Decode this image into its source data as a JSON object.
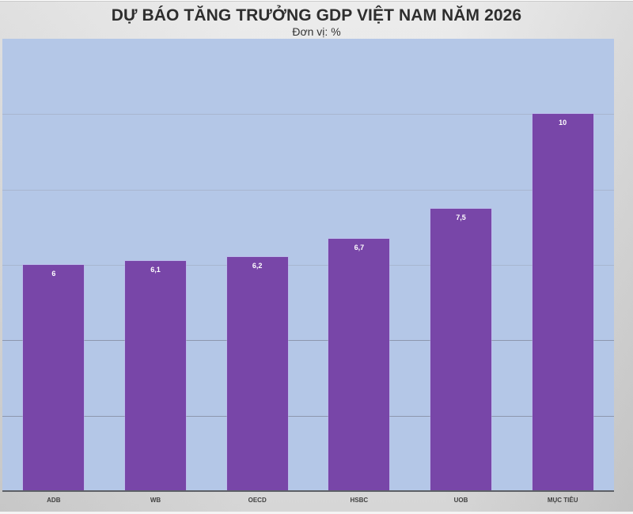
{
  "chart_data": {
    "type": "bar",
    "title": "DỰ BÁO TĂNG TRƯỞNG GDP VIỆT NAM NĂM 2026",
    "subtitle": "Đơn vị: %",
    "categories": [
      "ADB",
      "WB",
      "OECD",
      "HSBC",
      "UOB",
      "MỤC TIÊU"
    ],
    "values": [
      6,
      6.1,
      6.2,
      6.7,
      7.5,
      10
    ],
    "value_labels": [
      "6",
      "6,1",
      "6,2",
      "6,7",
      "7,5",
      "10"
    ],
    "xlabel": "",
    "ylabel": "",
    "ylim": [
      0,
      12
    ],
    "gridlines": [
      2,
      4,
      6,
      8,
      10
    ],
    "grid": true,
    "legend": null,
    "colors": {
      "bar": "#7846a8",
      "plot_background": "#b4c7e7",
      "bar_label": "#ffffff"
    }
  }
}
